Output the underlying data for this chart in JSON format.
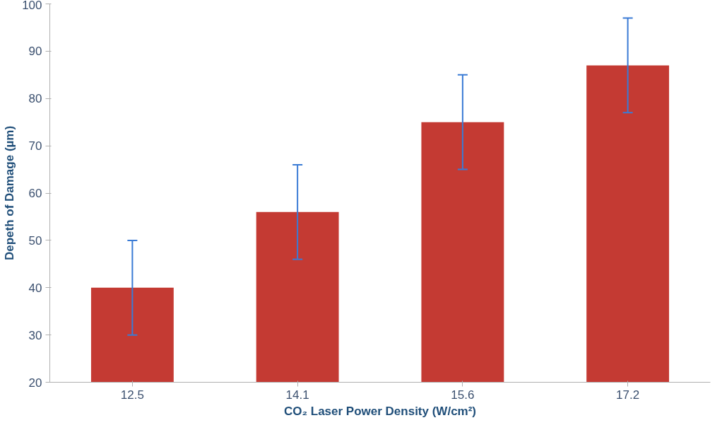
{
  "chart_data": {
    "type": "bar",
    "xlabel": "CO₂ Laser Power Density (W/cm²)",
    "ylabel": "Depeth of Damage (µm)",
    "categories": [
      "12.5",
      "14.1",
      "15.6",
      "17.2"
    ],
    "values": [
      40,
      56,
      75,
      87
    ],
    "errors": [
      10,
      10,
      10,
      10
    ],
    "color": "#c43a33",
    "ylim": [
      20,
      100
    ],
    "yticks": [
      20,
      30,
      40,
      50,
      60,
      70,
      80,
      90,
      100
    ],
    "grid": false
  }
}
